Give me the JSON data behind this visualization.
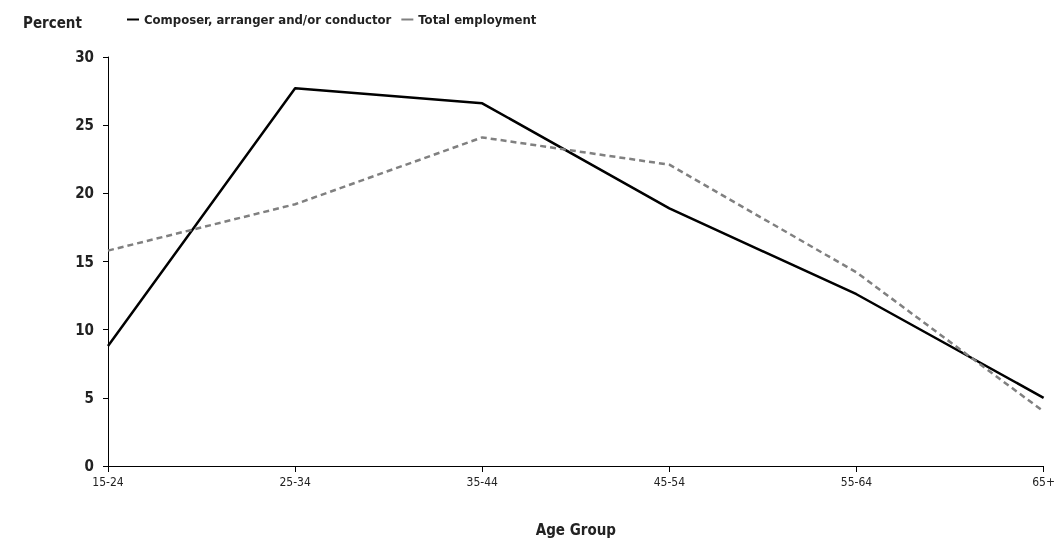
{
  "chart_data": {
    "type": "line",
    "ylabel": "Percent",
    "xlabel": "Age Group",
    "categories": [
      "15-24",
      "25-34",
      "35-44",
      "45-54",
      "55-64",
      "65+"
    ],
    "series": [
      {
        "name": "Composer, arranger and/or conductor",
        "color": "#000000",
        "line_style": "solid",
        "values": [
          8.8,
          27.7,
          26.6,
          18.9,
          12.6,
          5.0
        ]
      },
      {
        "name": "Total employment",
        "color": "#808080",
        "line_style": "dashed",
        "values": [
          15.8,
          19.2,
          24.1,
          22.1,
          14.2,
          4.0
        ]
      }
    ],
    "ylim": [
      0,
      30
    ],
    "yticks": [
      0,
      5,
      10,
      15,
      20,
      25,
      30
    ],
    "grid": false,
    "legend": "top left",
    "marker": "none"
  }
}
